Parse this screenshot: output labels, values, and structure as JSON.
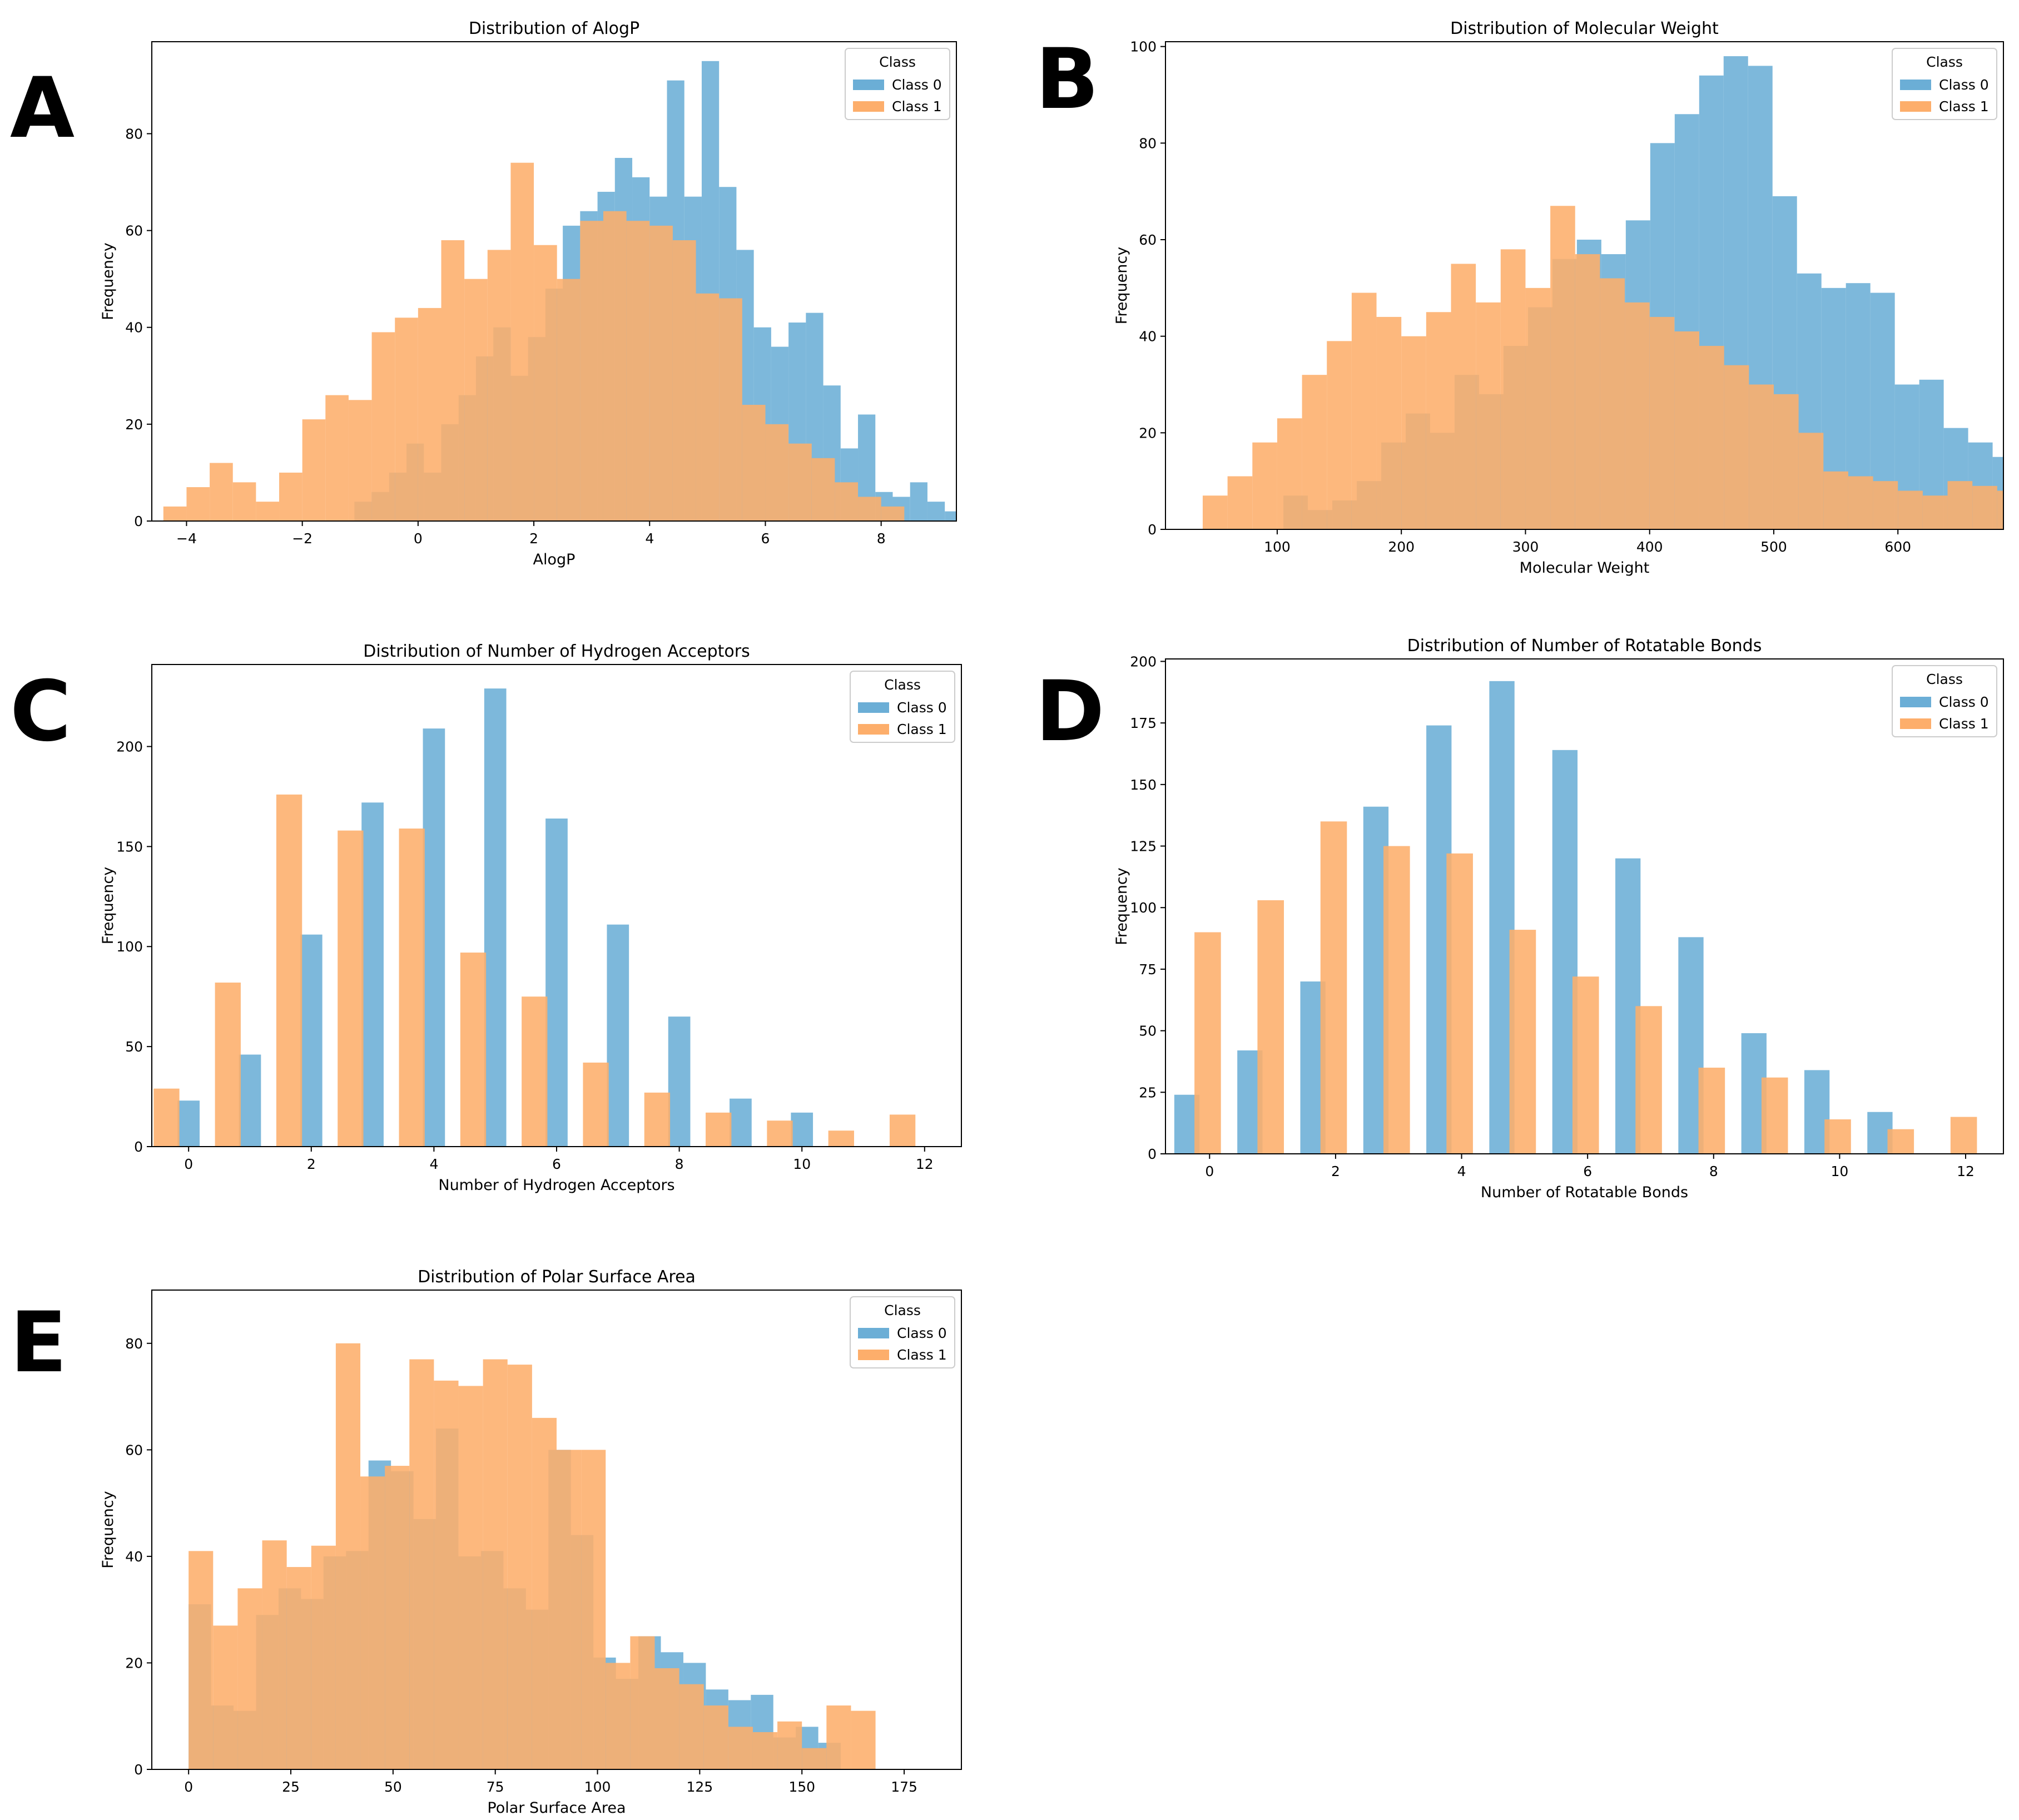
{
  "panels": [
    "A",
    "B",
    "C",
    "D",
    "E"
  ],
  "chart_data": [
    {
      "type": "bar",
      "title": "Distribution of AlogP",
      "xlabel": "AlogP",
      "ylabel": "Frequency",
      "xlim": [
        -4.6,
        9.3
      ],
      "ylim": [
        0,
        99
      ],
      "xticks": [
        -4,
        -2,
        0,
        2,
        4,
        6,
        8
      ],
      "yticks": [
        0,
        20,
        40,
        60,
        80
      ],
      "xtick_labels": [
        "−4",
        "−2",
        "0",
        "2",
        "4",
        "6",
        "8"
      ],
      "ytick_labels": [
        "0",
        "20",
        "40",
        "60",
        "80"
      ],
      "legend": {
        "title": "Class",
        "entries": [
          "Class 0",
          "Class 1"
        ],
        "position": "top-right"
      },
      "series": [
        {
          "name": "Class 0",
          "color": "#6baed6",
          "bin_start": -1.1,
          "bin_width": 0.3,
          "values": [
            4,
            6,
            10,
            16,
            10,
            20,
            26,
            34,
            40,
            30,
            38,
            48,
            61,
            64,
            68,
            75,
            71,
            67,
            91,
            67,
            95,
            69,
            56,
            40,
            36,
            41,
            43,
            28,
            15,
            22,
            6,
            5,
            8,
            4,
            2
          ]
        },
        {
          "name": "Class 1",
          "color": "#fdae6b",
          "bin_start": -4.4,
          "bin_width": 0.4,
          "values": [
            3,
            7,
            12,
            8,
            4,
            10,
            21,
            26,
            25,
            39,
            42,
            44,
            58,
            50,
            56,
            74,
            57,
            50,
            62,
            64,
            62,
            61,
            58,
            47,
            46,
            24,
            20,
            16,
            13,
            8,
            5,
            3
          ]
        }
      ]
    },
    {
      "type": "bar",
      "title": "Distribution of Molecular Weight",
      "xlabel": "Molecular Weight",
      "ylabel": "Frequency",
      "xlim": [
        10,
        685
      ],
      "ylim": [
        0,
        101
      ],
      "xticks": [
        100,
        200,
        300,
        400,
        500,
        600
      ],
      "yticks": [
        0,
        20,
        40,
        60,
        80,
        100
      ],
      "xtick_labels": [
        "100",
        "200",
        "300",
        "400",
        "500",
        "600"
      ],
      "ytick_labels": [
        "0",
        "20",
        "40",
        "60",
        "80",
        "100"
      ],
      "legend": {
        "title": "Class",
        "entries": [
          "Class 0",
          "Class 1"
        ],
        "position": "top-right"
      },
      "series": [
        {
          "name": "Class 0",
          "color": "#6baed6",
          "bin_start": 105,
          "bin_width": 19.7,
          "values": [
            7,
            4,
            6,
            10,
            18,
            24,
            20,
            32,
            28,
            38,
            46,
            56,
            60,
            57,
            64,
            80,
            86,
            94,
            98,
            96,
            69,
            53,
            50,
            51,
            49,
            30,
            31,
            21,
            18,
            15,
            10,
            12,
            12,
            7
          ]
        },
        {
          "name": "Class 1",
          "color": "#fdae6b",
          "bin_start": 40,
          "bin_width": 20,
          "values": [
            7,
            11,
            18,
            23,
            32,
            39,
            49,
            44,
            40,
            45,
            55,
            47,
            58,
            50,
            67,
            57,
            52,
            47,
            44,
            41,
            38,
            34,
            30,
            28,
            20,
            12,
            11,
            10,
            8,
            7,
            10,
            9,
            8,
            7,
            7
          ]
        }
      ]
    },
    {
      "type": "bar",
      "title": "Distribution of Number of Hydrogen Acceptors",
      "xlabel": "Number of Hydrogen Acceptors",
      "ylabel": "Frequency",
      "xlim": [
        -0.6,
        12.6
      ],
      "ylim": [
        0,
        241
      ],
      "xticks": [
        0,
        2,
        4,
        6,
        8,
        10,
        12
      ],
      "yticks": [
        0,
        50,
        100,
        150,
        200
      ],
      "xtick_labels": [
        "0",
        "2",
        "4",
        "6",
        "8",
        "10",
        "12"
      ],
      "ytick_labels": [
        "0",
        "50",
        "100",
        "150",
        "200"
      ],
      "legend": {
        "title": "Class",
        "entries": [
          "Class 0",
          "Class 1"
        ],
        "position": "top-right"
      },
      "series": [
        {
          "name": "Class 0",
          "color": "#6baed6",
          "x": [
            0,
            1,
            2,
            3,
            4,
            5,
            6,
            7,
            8,
            9,
            10
          ],
          "values": [
            23,
            46,
            106,
            172,
            209,
            229,
            164,
            111,
            65,
            24,
            17
          ],
          "bar_offset": 0.0,
          "bar_width": 0.36
        },
        {
          "name": "Class 1",
          "color": "#fdae6b",
          "x": [
            0,
            1,
            2,
            3,
            4,
            5,
            6,
            7,
            8,
            9,
            10,
            11,
            12
          ],
          "values": [
            29,
            82,
            176,
            158,
            159,
            97,
            75,
            42,
            27,
            17,
            13,
            8,
            16
          ],
          "bar_offset": -0.36,
          "bar_width": 0.42
        }
      ]
    },
    {
      "type": "bar",
      "title": "Distribution of Number of Rotatable Bonds",
      "xlabel": "Number of Rotatable Bonds",
      "ylabel": "Frequency",
      "xlim": [
        -0.7,
        12.6
      ],
      "ylim": [
        0,
        201
      ],
      "xticks": [
        0,
        2,
        4,
        6,
        8,
        10,
        12
      ],
      "yticks": [
        0,
        25,
        50,
        75,
        100,
        125,
        150,
        175,
        200
      ],
      "xtick_labels": [
        "0",
        "2",
        "4",
        "6",
        "8",
        "10",
        "12"
      ],
      "ytick_labels": [
        "0",
        "25",
        "50",
        "75",
        "100",
        "125",
        "150",
        "175",
        "200"
      ],
      "legend": {
        "title": "Class",
        "entries": [
          "Class 0",
          "Class 1"
        ],
        "position": "top-right"
      },
      "series": [
        {
          "name": "Class 0",
          "color": "#6baed6",
          "x": [
            0,
            1,
            2,
            3,
            4,
            5,
            6,
            7,
            8,
            9,
            10,
            11
          ],
          "values": [
            24,
            42,
            70,
            141,
            174,
            192,
            164,
            120,
            88,
            49,
            34,
            17
          ],
          "bar_offset": -0.36,
          "bar_width": 0.4
        },
        {
          "name": "Class 1",
          "color": "#fdae6b",
          "x": [
            0,
            1,
            2,
            3,
            4,
            5,
            6,
            7,
            8,
            9,
            10,
            11,
            12
          ],
          "values": [
            90,
            103,
            135,
            125,
            122,
            91,
            72,
            60,
            35,
            31,
            14,
            10,
            15
          ],
          "bar_offset": -0.03,
          "bar_width": 0.42
        }
      ]
    },
    {
      "type": "bar",
      "title": "Distribution of Polar Surface Area",
      "xlabel": "Polar Surface Area",
      "ylabel": "Frequency",
      "xlim": [
        -9,
        189
      ],
      "ylim": [
        0,
        90
      ],
      "xticks": [
        0,
        25,
        50,
        75,
        100,
        125,
        150,
        175
      ],
      "yticks": [
        0,
        20,
        40,
        60,
        80
      ],
      "xtick_labels": [
        "0",
        "25",
        "50",
        "75",
        "100",
        "125",
        "150",
        "175"
      ],
      "ytick_labels": [
        "0",
        "20",
        "40",
        "60",
        "80"
      ],
      "legend": {
        "title": "Class",
        "entries": [
          "Class 0",
          "Class 1"
        ],
        "position": "top-right"
      },
      "series": [
        {
          "name": "Class 0",
          "color": "#6baed6",
          "bin_start": 0,
          "bin_width": 5.5,
          "values": [
            31,
            12,
            11,
            29,
            34,
            32,
            40,
            41,
            58,
            56,
            47,
            64,
            40,
            41,
            34,
            30,
            60,
            44,
            21,
            17,
            25,
            22,
            20,
            15,
            13,
            14,
            6,
            8,
            5,
            0
          ]
        },
        {
          "name": "Class 1",
          "color": "#fdae6b",
          "bin_start": 0,
          "bin_width": 6.0,
          "values": [
            41,
            27,
            34,
            43,
            38,
            42,
            80,
            55,
            57,
            77,
            73,
            72,
            77,
            76,
            66,
            60,
            60,
            20,
            25,
            19,
            16,
            12,
            8,
            7,
            9,
            4,
            12,
            11
          ]
        }
      ]
    }
  ]
}
